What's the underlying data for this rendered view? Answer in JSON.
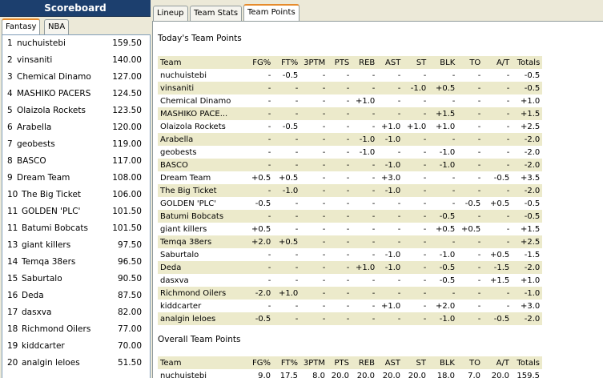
{
  "scoreboard": {
    "title": "Scoreboard",
    "tabs": [
      "Fantasy",
      "NBA"
    ],
    "standings": [
      {
        "rank": "1",
        "team": "nuchuistebi",
        "points": "159.50"
      },
      {
        "rank": "2",
        "team": "vinsaniti",
        "points": "140.00"
      },
      {
        "rank": "3",
        "team": "Chemical Dinamo",
        "points": "127.00"
      },
      {
        "rank": "4",
        "team": "MASHIKO PACERS",
        "points": "124.50"
      },
      {
        "rank": "5",
        "team": "Olaizola Rockets",
        "points": "123.50"
      },
      {
        "rank": "6",
        "team": "Arabella",
        "points": "120.00"
      },
      {
        "rank": "7",
        "team": "geobests",
        "points": "119.00"
      },
      {
        "rank": "8",
        "team": "BASCO",
        "points": "117.00"
      },
      {
        "rank": "9",
        "team": "Dream Team",
        "points": "108.00"
      },
      {
        "rank": "10",
        "team": "The Big Ticket",
        "points": "106.00"
      },
      {
        "rank": "11",
        "team": "GOLDEN 'PLC'",
        "points": "101.50"
      },
      {
        "rank": "11",
        "team": "Batumi Bobcats",
        "points": "101.50"
      },
      {
        "rank": "13",
        "team": "giant killers",
        "points": "97.50"
      },
      {
        "rank": "14",
        "team": "Temqa 38ers",
        "points": "96.50"
      },
      {
        "rank": "15",
        "team": "Saburtalo",
        "points": "90.50"
      },
      {
        "rank": "16",
        "team": "Deda",
        "points": "87.50"
      },
      {
        "rank": "17",
        "team": "dasxva",
        "points": "82.00"
      },
      {
        "rank": "18",
        "team": "Richmond Oilers",
        "points": "77.00"
      },
      {
        "rank": "19",
        "team": "kiddcarter",
        "points": "70.00"
      },
      {
        "rank": "20",
        "team": "analgin leloes",
        "points": "51.50"
      }
    ]
  },
  "main": {
    "tabs": [
      "Lineup",
      "Team Stats",
      "Team Points"
    ],
    "today": {
      "title": "Today's Team Points",
      "columns": [
        "Team",
        "FG%",
        "FT%",
        "3PTM",
        "PTS",
        "REB",
        "AST",
        "ST",
        "BLK",
        "TO",
        "A/T",
        "Totals"
      ],
      "rows": [
        [
          "nuchuistebi",
          "-",
          "-0.5",
          "-",
          "-",
          "-",
          "-",
          "-",
          "-",
          "-",
          "-",
          "-0.5"
        ],
        [
          "vinsaniti",
          "-",
          "-",
          "-",
          "-",
          "-",
          "-",
          "-1.0",
          "+0.5",
          "-",
          "-",
          "-0.5"
        ],
        [
          "Chemical Dinamo",
          "-",
          "-",
          "-",
          "-",
          "+1.0",
          "-",
          "-",
          "-",
          "-",
          "-",
          "+1.0"
        ],
        [
          "MASHIKO PACE...",
          "-",
          "-",
          "-",
          "-",
          "-",
          "-",
          "-",
          "+1.5",
          "-",
          "-",
          "+1.5"
        ],
        [
          "Olaizola Rockets",
          "-",
          "-0.5",
          "-",
          "-",
          "-",
          "+1.0",
          "+1.0",
          "+1.0",
          "-",
          "-",
          "+2.5"
        ],
        [
          "Arabella",
          "-",
          "-",
          "-",
          "-",
          "-1.0",
          "-1.0",
          "-",
          "-",
          "-",
          "-",
          "-2.0"
        ],
        [
          "geobests",
          "-",
          "-",
          "-",
          "-",
          "-1.0",
          "-",
          "-",
          "-1.0",
          "-",
          "-",
          "-2.0"
        ],
        [
          "BASCO",
          "-",
          "-",
          "-",
          "-",
          "-",
          "-1.0",
          "-",
          "-1.0",
          "-",
          "-",
          "-2.0"
        ],
        [
          "Dream Team",
          "+0.5",
          "+0.5",
          "-",
          "-",
          "-",
          "+3.0",
          "-",
          "-",
          "-",
          "-0.5",
          "+3.5"
        ],
        [
          "The Big Ticket",
          "-",
          "-1.0",
          "-",
          "-",
          "-",
          "-1.0",
          "-",
          "-",
          "-",
          "-",
          "-2.0"
        ],
        [
          "GOLDEN 'PLC'",
          "-0.5",
          "-",
          "-",
          "-",
          "-",
          "-",
          "-",
          "-",
          "-0.5",
          "+0.5",
          "-0.5"
        ],
        [
          "Batumi Bobcats",
          "-",
          "-",
          "-",
          "-",
          "-",
          "-",
          "-",
          "-0.5",
          "-",
          "-",
          "-0.5"
        ],
        [
          "giant killers",
          "+0.5",
          "-",
          "-",
          "-",
          "-",
          "-",
          "-",
          "+0.5",
          "+0.5",
          "-",
          "+1.5"
        ],
        [
          "Temqa 38ers",
          "+2.0",
          "+0.5",
          "-",
          "-",
          "-",
          "-",
          "-",
          "-",
          "-",
          "-",
          "+2.5"
        ],
        [
          "Saburtalo",
          "-",
          "-",
          "-",
          "-",
          "-",
          "-1.0",
          "-",
          "-1.0",
          "-",
          "+0.5",
          "-1.5"
        ],
        [
          "Deda",
          "-",
          "-",
          "-",
          "-",
          "+1.0",
          "-1.0",
          "-",
          "-0.5",
          "-",
          "-1.5",
          "-2.0"
        ],
        [
          "dasxva",
          "-",
          "-",
          "-",
          "-",
          "-",
          "-",
          "-",
          "-0.5",
          "-",
          "+1.5",
          "+1.0"
        ],
        [
          "Richmond Oilers",
          "-2.0",
          "+1.0",
          "-",
          "-",
          "-",
          "-",
          "-",
          "-",
          "-",
          "-",
          "-1.0"
        ],
        [
          "kiddcarter",
          "-",
          "-",
          "-",
          "-",
          "-",
          "+1.0",
          "-",
          "+2.0",
          "-",
          "-",
          "+3.0"
        ],
        [
          "analgin leloes",
          "-0.5",
          "-",
          "-",
          "-",
          "-",
          "-",
          "-",
          "-1.0",
          "-",
          "-0.5",
          "-2.0"
        ]
      ]
    },
    "overall": {
      "title": "Overall Team Points",
      "columns": [
        "Team",
        "FG%",
        "FT%",
        "3PTM",
        "PTS",
        "REB",
        "AST",
        "ST",
        "BLK",
        "TO",
        "A/T",
        "Totals"
      ],
      "rows": [
        [
          "nuchuistebi",
          "9.0",
          "17.5",
          "8.0",
          "20.0",
          "20.0",
          "20.0",
          "20.0",
          "18.0",
          "7.0",
          "20.0",
          "159.5"
        ]
      ]
    }
  }
}
